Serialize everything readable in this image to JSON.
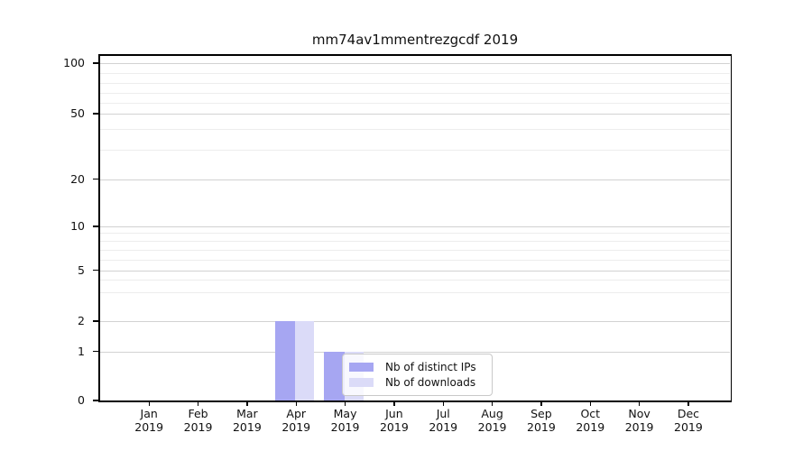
{
  "title": "mm74av1mmentrezgcdf 2019",
  "chart_data": {
    "type": "bar",
    "title": "mm74av1mmentrezgcdf 2019",
    "categories": [
      "Jan",
      "Feb",
      "Mar",
      "Apr",
      "May",
      "Jun",
      "Jul",
      "Aug",
      "Sep",
      "Oct",
      "Nov",
      "Dec"
    ],
    "year_label": "2019",
    "series": [
      {
        "name": "Nb of distinct IPs",
        "color": "#a6a6f2",
        "values": [
          0,
          0,
          0,
          2,
          1,
          0,
          0,
          0,
          0,
          0,
          0,
          0
        ]
      },
      {
        "name": "Nb of downloads",
        "color": "#dbdbf8",
        "values": [
          0,
          0,
          0,
          2,
          1,
          0,
          0,
          0,
          0,
          0,
          0,
          0
        ]
      }
    ],
    "y_ticks": [
      0,
      1,
      2,
      5,
      10,
      20,
      50,
      100
    ],
    "y_minor_ticks": [
      3,
      4,
      6,
      7,
      8,
      9,
      30,
      40,
      60,
      70,
      80,
      90
    ],
    "ylim": [
      0,
      100
    ],
    "xlabel": "",
    "ylabel": "",
    "scale": "log-like",
    "grid": "horizontal",
    "legend_position": "inside-bottom-center",
    "colors": {
      "bar_dark": "#a6a6f2",
      "bar_light": "#dbdbf8",
      "grid_major": "#d2d2d2",
      "grid_minor": "#ededed",
      "spine": "#000000",
      "legend_border": "#c9c9c9"
    }
  }
}
